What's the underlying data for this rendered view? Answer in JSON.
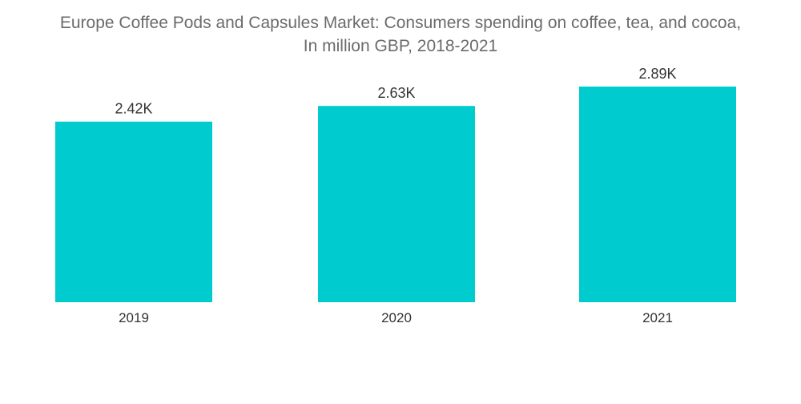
{
  "chart_data": {
    "type": "bar",
    "title_lines": [
      "Europe Coffee Pods and Capsules Market: Consumers spending on coffee, tea, and cocoa,",
      "In million GBP, 2018-2021"
    ],
    "categories": [
      "2019",
      "2020",
      "2021"
    ],
    "values": [
      2420,
      2630,
      2890
    ],
    "data_labels": [
      "2.42K",
      "2.63K",
      "2.89K"
    ],
    "xlabel": "",
    "ylabel": "",
    "ylim": [
      0,
      4050
    ],
    "grid": false,
    "legend": "none",
    "bar_color": "#00ccd0"
  }
}
